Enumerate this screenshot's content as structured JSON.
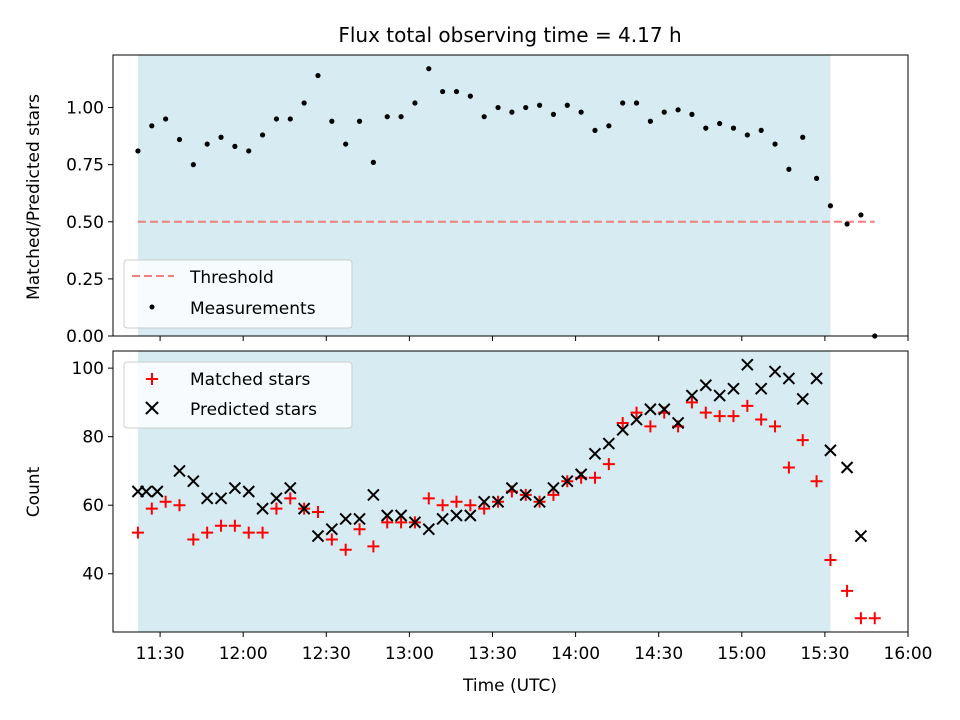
{
  "figure": {
    "title": "Flux total observing time = 4.17 h",
    "observing_window": {
      "start": "11:22",
      "end": "15:32",
      "color": "#add8e6",
      "alpha": 0.5
    }
  },
  "chart_data": [
    {
      "type": "scatter",
      "panel": "top",
      "ylabel": "Matched/Predicted stars",
      "xlabel": "",
      "x_axis": "time",
      "xlim": [
        "11:13",
        "16:00"
      ],
      "ylim": [
        0,
        1.23
      ],
      "yticks": [
        0.0,
        0.25,
        0.5,
        0.75,
        1.0
      ],
      "ytick_labels": [
        "0.00",
        "0.25",
        "0.50",
        "0.75",
        "1.00"
      ],
      "legend_position": "lower-left",
      "threshold": {
        "name": "Threshold",
        "value": 0.5,
        "x_start": "11:22",
        "x_end": "15:48",
        "color": "#f08080",
        "style": "dashed"
      },
      "series": [
        {
          "name": "Measurements",
          "marker": "dot",
          "color": "#000000",
          "x": [
            "11:22",
            "11:27",
            "11:32",
            "11:37",
            "11:42",
            "11:47",
            "11:52",
            "11:57",
            "12:02",
            "12:07",
            "12:12",
            "12:17",
            "12:22",
            "12:27",
            "12:32",
            "12:37",
            "12:42",
            "12:47",
            "12:52",
            "12:57",
            "13:02",
            "13:07",
            "13:12",
            "13:17",
            "13:22",
            "13:27",
            "13:32",
            "13:37",
            "13:42",
            "13:47",
            "13:52",
            "13:57",
            "14:02",
            "14:07",
            "14:12",
            "14:17",
            "14:22",
            "14:27",
            "14:32",
            "14:37",
            "14:42",
            "14:47",
            "14:52",
            "14:57",
            "15:02",
            "15:07",
            "15:12",
            "15:17",
            "15:22",
            "15:27",
            "15:32",
            "15:38",
            "15:43",
            "15:48"
          ],
          "values": [
            0.81,
            0.92,
            0.95,
            0.86,
            0.75,
            0.84,
            0.87,
            0.83,
            0.81,
            0.88,
            0.95,
            0.95,
            1.02,
            1.14,
            0.94,
            0.84,
            0.94,
            0.76,
            0.96,
            0.96,
            1.02,
            1.17,
            1.07,
            1.07,
            1.05,
            0.96,
            1.0,
            0.98,
            1.0,
            1.01,
            0.97,
            1.01,
            0.98,
            0.9,
            0.92,
            1.02,
            1.02,
            0.94,
            0.98,
            0.99,
            0.97,
            0.91,
            0.93,
            0.91,
            0.88,
            0.9,
            0.84,
            0.73,
            0.87,
            0.69,
            0.57,
            0.49,
            0.53,
            0.0
          ]
        }
      ]
    },
    {
      "type": "scatter",
      "panel": "bottom",
      "ylabel": "Count",
      "xlabel": "Time (UTC)",
      "x_axis": "time",
      "xlim": [
        "11:13",
        "16:00"
      ],
      "ylim": [
        23,
        105
      ],
      "yticks": [
        40,
        60,
        80,
        100
      ],
      "xtick_labels": [
        "11:30",
        "12:00",
        "12:30",
        "13:00",
        "13:30",
        "14:00",
        "14:30",
        "15:00",
        "15:30",
        "16:00"
      ],
      "legend_position": "upper-left",
      "series": [
        {
          "name": "Matched stars",
          "marker": "plus",
          "color": "#ff0000",
          "x": [
            "11:22",
            "11:27",
            "11:32",
            "11:37",
            "11:42",
            "11:47",
            "11:52",
            "11:57",
            "12:02",
            "12:07",
            "12:12",
            "12:17",
            "12:22",
            "12:27",
            "12:32",
            "12:37",
            "12:42",
            "12:47",
            "12:52",
            "12:57",
            "13:02",
            "13:07",
            "13:12",
            "13:17",
            "13:22",
            "13:27",
            "13:32",
            "13:37",
            "13:42",
            "13:47",
            "13:52",
            "13:57",
            "14:02",
            "14:07",
            "14:12",
            "14:17",
            "14:22",
            "14:27",
            "14:32",
            "14:37",
            "14:42",
            "14:47",
            "14:52",
            "14:57",
            "15:02",
            "15:07",
            "15:12",
            "15:17",
            "15:22",
            "15:27",
            "15:32",
            "15:38",
            "15:43",
            "15:48"
          ],
          "values": [
            52,
            59,
            61,
            60,
            50,
            52,
            54,
            54,
            52,
            52,
            59,
            62,
            59,
            58,
            50,
            47,
            53,
            48,
            55,
            55,
            55,
            62,
            60,
            61,
            60,
            59,
            61,
            64,
            63,
            61,
            63,
            67,
            68,
            68,
            72,
            84,
            87,
            83,
            87,
            83,
            90,
            87,
            86,
            86,
            89,
            85,
            83,
            71,
            79,
            67,
            44,
            35,
            27,
            27
          ]
        },
        {
          "name": "Predicted stars",
          "marker": "x",
          "color": "#000000",
          "x": [
            "11:22",
            "11:25",
            "11:29",
            "11:37",
            "11:42",
            "11:47",
            "11:52",
            "11:57",
            "12:02",
            "12:07",
            "12:12",
            "12:17",
            "12:22",
            "12:27",
            "12:32",
            "12:37",
            "12:42",
            "12:47",
            "12:52",
            "12:57",
            "13:02",
            "13:07",
            "13:12",
            "13:17",
            "13:22",
            "13:27",
            "13:32",
            "13:37",
            "13:42",
            "13:47",
            "13:52",
            "13:57",
            "14:02",
            "14:07",
            "14:12",
            "14:17",
            "14:22",
            "14:27",
            "14:32",
            "14:37",
            "14:42",
            "14:47",
            "14:52",
            "14:57",
            "15:02",
            "15:07",
            "15:12",
            "15:17",
            "15:22",
            "15:27",
            "15:32",
            "15:38",
            "15:43"
          ],
          "values": [
            64,
            64,
            64,
            70,
            67,
            62,
            62,
            65,
            64,
            59,
            62,
            65,
            59,
            51,
            53,
            56,
            56,
            63,
            57,
            57,
            55,
            53,
            56,
            57,
            57,
            61,
            61,
            65,
            63,
            61,
            65,
            67,
            69,
            75,
            78,
            82,
            85,
            88,
            88,
            84,
            92,
            95,
            92,
            94,
            101,
            94,
            99,
            97,
            91,
            97,
            76,
            71,
            51
          ]
        }
      ]
    }
  ]
}
